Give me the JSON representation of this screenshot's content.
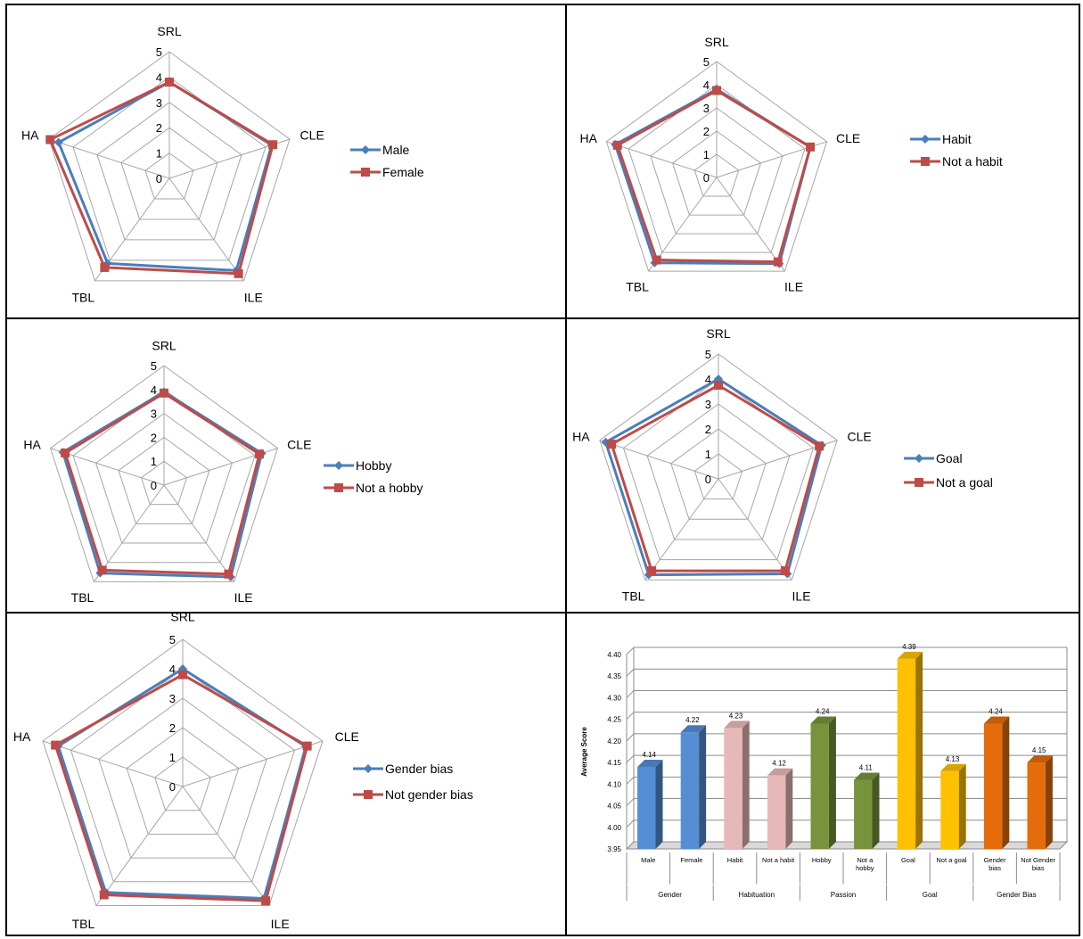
{
  "colors": {
    "series1": "#4a7ebb",
    "series2": "#be4b48",
    "grid": "#a6a6a6"
  },
  "chart_data": [
    {
      "type": "radar",
      "axes": [
        "SRL",
        "CLE",
        "ILE",
        "TBL",
        "HA"
      ],
      "rmax": 5,
      "ticks": [
        "0",
        "1",
        "2",
        "3",
        "4",
        "5"
      ],
      "series": [
        {
          "name": "Male",
          "values": [
            3.8,
            4.25,
            4.5,
            4.15,
            4.6
          ]
        },
        {
          "name": "Female",
          "values": [
            3.8,
            4.3,
            4.65,
            4.35,
            4.95
          ]
        }
      ]
    },
    {
      "type": "radar",
      "axes": [
        "SRL",
        "CLE",
        "ILE",
        "TBL",
        "HA"
      ],
      "rmax": 5,
      "ticks": [
        "0",
        "1",
        "2",
        "3",
        "4",
        "5"
      ],
      "series": [
        {
          "name": "Habit",
          "values": [
            3.8,
            4.25,
            4.6,
            4.55,
            4.6
          ]
        },
        {
          "name": "Not a habit",
          "values": [
            3.75,
            4.25,
            4.5,
            4.4,
            4.5
          ]
        }
      ]
    },
    {
      "type": "radar",
      "axes": [
        "SRL",
        "CLE",
        "ILE",
        "TBL",
        "HA"
      ],
      "rmax": 5,
      "ticks": [
        "0",
        "1",
        "2",
        "3",
        "4",
        "5"
      ],
      "series": [
        {
          "name": "Hobby",
          "values": [
            3.9,
            4.3,
            4.75,
            4.55,
            4.45
          ]
        },
        {
          "name": "Not a hobby",
          "values": [
            3.85,
            4.2,
            4.6,
            4.4,
            4.35
          ]
        }
      ]
    },
    {
      "type": "radar",
      "axes": [
        "SRL",
        "CLE",
        "ILE",
        "TBL",
        "HA"
      ],
      "rmax": 5,
      "ticks": [
        "0",
        "1",
        "2",
        "3",
        "4",
        "5"
      ],
      "series": [
        {
          "name": "Goal",
          "values": [
            4.0,
            4.35,
            4.7,
            4.75,
            4.75
          ]
        },
        {
          "name": "Not a goal",
          "values": [
            3.75,
            4.25,
            4.55,
            4.55,
            4.5
          ]
        }
      ]
    },
    {
      "type": "radar",
      "axes": [
        "SRL",
        "CLE",
        "ILE",
        "TBL",
        "HA"
      ],
      "rmax": 5,
      "ticks": [
        "0",
        "1",
        "2",
        "3",
        "4",
        "5"
      ],
      "series": [
        {
          "name": "Gender bias",
          "values": [
            4.0,
            4.4,
            4.7,
            4.45,
            4.45
          ]
        },
        {
          "name": "Not gender bias",
          "values": [
            3.8,
            4.45,
            4.8,
            4.55,
            4.55
          ]
        }
      ]
    },
    {
      "type": "bar",
      "ylabel": "Average Score",
      "ylim": [
        3.95,
        4.4
      ],
      "yticks": [
        "3.95",
        "4.00",
        "4.05",
        "4.10",
        "4.15",
        "4.20",
        "4.25",
        "4.30",
        "4.35",
        "4.40"
      ],
      "categories": [
        "Male",
        "Female",
        "Habit",
        "Not a habit",
        "Hobby",
        "Not a hobby",
        "Goal",
        "Not a goal",
        "Gender bias",
        "Not Gender bias"
      ],
      "category_lines": [
        [
          "Male"
        ],
        [
          "Female"
        ],
        [
          "Habit"
        ],
        [
          "Not a habit"
        ],
        [
          "Hobby"
        ],
        [
          "Not a",
          "hobby"
        ],
        [
          "Goal"
        ],
        [
          "Not a goal"
        ],
        [
          "Gender",
          "bias"
        ],
        [
          "Not Gender",
          "bias"
        ]
      ],
      "values": [
        4.14,
        4.22,
        4.23,
        4.12,
        4.24,
        4.11,
        4.39,
        4.13,
        4.24,
        4.15
      ],
      "value_labels": [
        "4.14",
        "4.22",
        "4.23",
        "4.12",
        "4.24",
        "4.11",
        "4.39",
        "4.13",
        "4.24",
        "4.15"
      ],
      "groups": [
        "Gender",
        "Habituation",
        "Passion",
        "Goal",
        "Gender Bias"
      ],
      "bar_colors": [
        "#558ed5",
        "#558ed5",
        "#e6b9b8",
        "#e6b9b8",
        "#77933c",
        "#77933c",
        "#ffc000",
        "#ffc000",
        "#e46c0a",
        "#e46c0a"
      ]
    }
  ]
}
